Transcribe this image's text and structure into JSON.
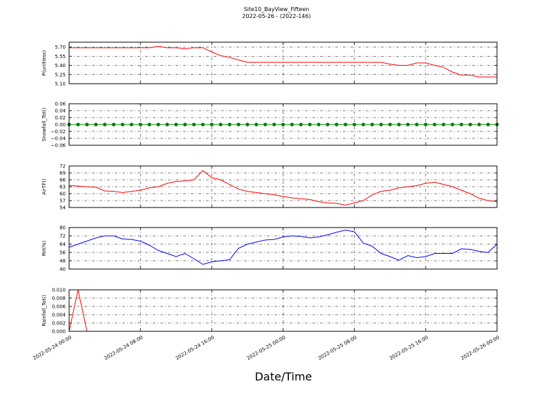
{
  "title": "Site10_BayView_Fifteen",
  "subtitle": "2022-05-26 - (2022-146)",
  "xlabel": "Date/Time",
  "x": [
    "2022-05-24 00:00",
    "2022-05-24 01:00",
    "2022-05-24 02:00",
    "2022-05-24 03:00",
    "2022-05-24 04:00",
    "2022-05-24 05:00",
    "2022-05-24 06:00",
    "2022-05-24 07:00",
    "2022-05-24 08:00",
    "2022-05-24 09:00",
    "2022-05-24 10:00",
    "2022-05-24 11:00",
    "2022-05-24 12:00",
    "2022-05-24 13:00",
    "2022-05-24 14:00",
    "2022-05-24 15:00",
    "2022-05-24 16:00",
    "2022-05-24 17:00",
    "2022-05-24 18:00",
    "2022-05-24 19:00",
    "2022-05-24 20:00",
    "2022-05-24 21:00",
    "2022-05-24 22:00",
    "2022-05-24 23:00",
    "2022-05-25 00:00",
    "2022-05-25 01:00",
    "2022-05-25 02:00",
    "2022-05-25 03:00",
    "2022-05-25 04:00",
    "2022-05-25 05:00",
    "2022-05-25 06:00",
    "2022-05-25 07:00",
    "2022-05-25 08:00",
    "2022-05-25 09:00",
    "2022-05-25 10:00",
    "2022-05-25 11:00",
    "2022-05-25 12:00",
    "2022-05-25 13:00",
    "2022-05-25 14:00",
    "2022-05-25 15:00",
    "2022-05-25 16:00",
    "2022-05-25 17:00",
    "2022-05-25 18:00",
    "2022-05-25 19:00",
    "2022-05-25 20:00",
    "2022-05-25 21:00",
    "2022-05-25 22:00",
    "2022-05-25 23:00",
    "2022-05-26 00:00"
  ],
  "xlim": [
    "2022-05-24 00:00",
    "2022-05-26 00:00"
  ],
  "xticks": [
    "2022-05-24 00:00",
    "2022-05-24 08:00",
    "2022-05-24 16:00",
    "2022-05-25 00:00",
    "2022-05-25 08:00",
    "2022-05-25 16:00",
    "2022-05-26 00:00"
  ],
  "chart_data": [
    {
      "type": "line",
      "ylabel": "P(unitless)",
      "ylim": [
        5.1,
        5.78
      ],
      "grid": true,
      "yticks": [
        {
          "value": 5.1,
          "label": "5.10"
        },
        {
          "value": 5.25,
          "label": "5.25"
        },
        {
          "value": 5.4,
          "label": "5.40"
        },
        {
          "value": 5.55,
          "label": "5.55"
        },
        {
          "value": 5.7,
          "label": "5.70"
        }
      ],
      "series": [
        {
          "color": "#ff0000",
          "values": [
            5.69,
            5.69,
            5.69,
            5.69,
            5.69,
            5.69,
            5.69,
            5.69,
            5.69,
            5.69,
            5.71,
            5.69,
            5.69,
            5.67,
            5.69,
            5.69,
            5.62,
            5.56,
            5.53,
            5.49,
            5.45,
            5.45,
            5.45,
            5.45,
            5.45,
            5.45,
            5.45,
            5.45,
            5.45,
            5.45,
            5.45,
            5.45,
            5.45,
            5.45,
            5.45,
            5.45,
            5.42,
            5.4,
            5.4,
            5.44,
            5.44,
            5.4,
            5.37,
            5.29,
            5.24,
            5.24,
            5.21,
            5.21,
            5.21
          ]
        }
      ]
    },
    {
      "type": "line",
      "ylabel": "Snowfall_Tot()",
      "ylim": [
        -0.06,
        0.06
      ],
      "grid": true,
      "marker": true,
      "yticks": [
        {
          "value": -0.06,
          "label": "−0.06"
        },
        {
          "value": -0.04,
          "label": "−0.04"
        },
        {
          "value": -0.02,
          "label": "−0.02"
        },
        {
          "value": 0,
          "label": "0.00"
        },
        {
          "value": 0.02,
          "label": "0.02"
        },
        {
          "value": 0.04,
          "label": "0.04"
        },
        {
          "value": 0.06,
          "label": "0.06"
        }
      ],
      "series": [
        {
          "color": "#008000",
          "values": [
            0,
            0,
            0,
            0,
            0,
            0,
            0,
            0,
            0,
            0,
            0,
            0,
            0,
            0,
            0,
            0,
            0,
            0,
            0,
            0,
            0,
            0,
            0,
            0,
            0,
            0,
            0,
            0,
            0,
            0,
            0,
            0,
            0,
            0,
            0,
            0,
            0,
            0,
            0,
            0,
            0,
            0,
            0,
            0,
            0,
            0,
            0,
            0,
            0
          ]
        }
      ]
    },
    {
      "type": "line",
      "ylabel": "AirTF()",
      "ylim": [
        54,
        72
      ],
      "grid": true,
      "yticks": [
        54,
        57,
        60,
        63,
        66,
        69,
        72
      ],
      "series": [
        {
          "color": "#ff0000",
          "values": [
            63.5,
            63.3,
            63,
            62.8,
            61.2,
            61,
            60.5,
            61,
            61.5,
            62.5,
            63,
            64.5,
            65.3,
            65.5,
            66,
            70,
            67,
            66,
            64,
            62,
            61,
            60.5,
            60,
            59.5,
            58.8,
            58.2,
            57.8,
            57.5,
            56.5,
            56,
            55.8,
            55,
            56,
            57,
            59.5,
            61,
            61.5,
            62.5,
            63,
            63.5,
            64.5,
            65,
            64,
            63,
            61.5,
            60,
            58,
            57,
            56.5
          ]
        }
      ]
    },
    {
      "type": "line",
      "ylabel": "RH(%)",
      "ylim": [
        40,
        80
      ],
      "grid": true,
      "yticks": [
        40,
        48,
        56,
        64,
        72,
        80
      ],
      "series": [
        {
          "color": "#0000ff",
          "values": [
            61,
            64,
            67,
            70,
            72,
            72,
            69,
            68.5,
            67,
            63,
            58,
            55,
            52,
            55,
            50,
            44.5,
            47,
            48,
            49,
            60,
            64,
            66,
            68,
            68.5,
            71,
            72,
            71.5,
            70,
            71,
            73,
            75.5,
            77.5,
            76,
            65,
            62,
            55,
            52,
            48.5,
            53,
            51,
            52,
            55,
            55,
            55,
            59.5,
            59,
            57,
            56,
            64
          ]
        }
      ]
    },
    {
      "type": "line",
      "ylabel": "Rainfall_Tot()",
      "ylim": [
        0,
        0.01
      ],
      "grid": true,
      "yticks": [
        {
          "value": 0,
          "label": "0.000"
        },
        {
          "value": 0.002,
          "label": "0.002"
        },
        {
          "value": 0.004,
          "label": "0.004"
        },
        {
          "value": 0.006,
          "label": "0.006"
        },
        {
          "value": 0.008,
          "label": "0.008"
        },
        {
          "value": 0.01,
          "label": "0.010"
        }
      ],
      "series": [
        {
          "color": "#ff0000",
          "values": [
            0,
            0.01,
            0,
            0,
            0,
            0,
            0,
            0,
            0,
            0,
            0,
            0,
            0,
            0,
            0,
            0,
            0,
            0,
            0,
            0,
            0,
            0,
            0,
            0,
            0,
            0,
            0,
            0,
            0,
            0,
            0,
            0,
            0,
            0,
            0,
            0,
            0,
            0,
            0,
            0,
            0,
            0,
            0,
            0,
            0,
            0,
            0,
            0,
            0
          ]
        }
      ]
    }
  ]
}
